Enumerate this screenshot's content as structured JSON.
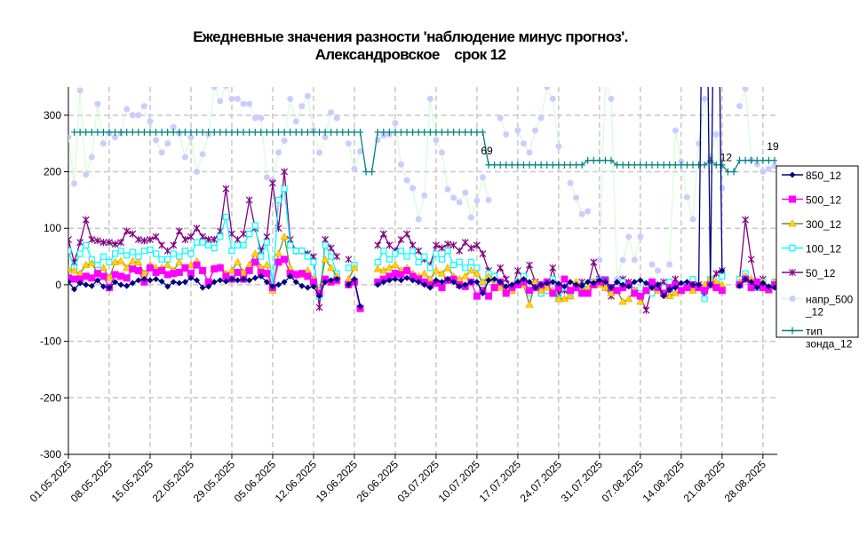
{
  "chart_data": {
    "type": "line",
    "title": [
      "Ежедневные значения разности 'наблюдение минус прогноз'.",
      "Александровское    срок 12"
    ],
    "xlabel": "",
    "ylabel": "",
    "x_start": "01.05.2025",
    "x_end": "30.08.2025",
    "x_tick_labels": [
      "01.05.2025",
      "08.05.2025",
      "15.05.2025",
      "22.05.2025",
      "29.05.2025",
      "05.06.2025",
      "12.06.2025",
      "19.06.2025",
      "26.06.2025",
      "03.07.2025",
      "10.07.2025",
      "17.07.2025",
      "24.07.2025",
      "31.07.2025",
      "07.08.2025",
      "14.08.2025",
      "21.08.2025",
      "28.08.2025"
    ],
    "ylim": [
      -300,
      350
    ],
    "y_ticks": [
      -300,
      -200,
      -100,
      0,
      100,
      200,
      300
    ],
    "grid": true,
    "legend_position": "right",
    "series": [
      {
        "name": "850_12",
        "color": "#000080",
        "marker": "diamond",
        "values": [
          5,
          -8,
          3,
          0,
          -2,
          8,
          -3,
          -5,
          5,
          0,
          -2,
          3,
          8,
          10,
          8,
          10,
          6,
          -3,
          5,
          3,
          5,
          12,
          8,
          -5,
          -3,
          5,
          8,
          6,
          10,
          8,
          10,
          8,
          12,
          15,
          5,
          -3,
          0,
          5,
          15,
          5,
          -2,
          -5,
          -3,
          -20,
          5,
          8,
          10,
          null,
          0,
          10,
          -38,
          null,
          null,
          0,
          5,
          8,
          10,
          8,
          12,
          8,
          5,
          0,
          -5,
          8,
          5,
          10,
          5,
          -3,
          0,
          5,
          5,
          -15,
          8,
          10,
          5,
          -3,
          0,
          5,
          10,
          5,
          -5,
          0,
          3,
          5,
          2,
          -3,
          5,
          0,
          -2,
          5,
          3,
          8,
          5,
          -5,
          5,
          0,
          -3,
          5,
          8,
          3,
          -5,
          0,
          -20,
          -8,
          -5,
          3,
          5,
          0,
          0,
          900,
          0,
          900,
          25,
          null,
          null,
          -2,
          10,
          5,
          -5,
          3,
          -3,
          -5
        ]
      },
      {
        "name": "500_12",
        "color": "#FF00FF",
        "marker": "square",
        "values": [
          12,
          10,
          10,
          15,
          12,
          20,
          15,
          -5,
          18,
          15,
          12,
          28,
          25,
          5,
          30,
          22,
          25,
          18,
          20,
          22,
          30,
          20,
          35,
          25,
          5,
          28,
          30,
          15,
          10,
          22,
          10,
          25,
          40,
          22,
          20,
          -5,
          40,
          45,
          20,
          18,
          20,
          15,
          5,
          -15,
          10,
          5,
          8,
          null,
          0,
          5,
          -42,
          null,
          null,
          5,
          10,
          15,
          20,
          18,
          25,
          15,
          10,
          5,
          0,
          3,
          -5,
          8,
          10,
          0,
          -3,
          5,
          -20,
          -10,
          -20,
          -5,
          5,
          -15,
          -5,
          0,
          5,
          -10,
          -5,
          0,
          5,
          -15,
          -5,
          10,
          -10,
          -5,
          -15,
          -15,
          0,
          5,
          8,
          -5,
          -10,
          -5,
          0,
          -15,
          -20,
          -10,
          5,
          -5,
          -15,
          -5,
          0,
          -10,
          -5,
          0,
          -5,
          -10,
          0,
          -5,
          -10,
          null,
          null,
          0,
          10,
          -5,
          5,
          -5,
          -8,
          0
        ]
      },
      {
        "name": "300_12",
        "color": "#6B8E23",
        "fill": "#FFD700",
        "marker": "triangle",
        "values": [
          28,
          25,
          20,
          35,
          38,
          20,
          30,
          12,
          40,
          42,
          30,
          42,
          40,
          20,
          35,
          30,
          30,
          35,
          25,
          40,
          28,
          35,
          42,
          25,
          5,
          30,
          32,
          20,
          25,
          40,
          22,
          35,
          55,
          30,
          35,
          -10,
          55,
          85,
          30,
          20,
          18,
          25,
          10,
          -10,
          45,
          30,
          15,
          null,
          10,
          30,
          null,
          null,
          null,
          28,
          25,
          30,
          35,
          25,
          30,
          20,
          15,
          20,
          10,
          25,
          20,
          30,
          15,
          10,
          15,
          25,
          20,
          5,
          15,
          0,
          -5,
          -10,
          -10,
          5,
          0,
          -35,
          5,
          -10,
          -5,
          -10,
          -25,
          -25,
          -20,
          5,
          -10,
          -5,
          5,
          0,
          -5,
          -15,
          -10,
          -30,
          -25,
          -10,
          -30,
          -10,
          -5,
          -10,
          -15,
          -20,
          -15,
          -10,
          -5,
          -10,
          -5,
          0,
          10,
          5,
          0,
          null,
          null,
          5,
          15,
          10,
          0,
          5,
          -10,
          5
        ]
      },
      {
        "name": "100_12",
        "color": "#00FFFF",
        "marker": "open-square",
        "values": [
          60,
          30,
          55,
          70,
          45,
          35,
          50,
          40,
          55,
          60,
          52,
          58,
          50,
          60,
          62,
          55,
          45,
          45,
          55,
          50,
          60,
          55,
          75,
          75,
          70,
          65,
          85,
          120,
          60,
          70,
          70,
          90,
          105,
          50,
          75,
          0,
          150,
          170,
          70,
          60,
          60,
          50,
          40,
          -20,
          70,
          50,
          20,
          null,
          30,
          35,
          null,
          null,
          null,
          40,
          60,
          45,
          55,
          60,
          50,
          60,
          40,
          50,
          30,
          55,
          45,
          60,
          35,
          40,
          30,
          40,
          30,
          -5,
          20,
          15,
          5,
          -5,
          -10,
          5,
          15,
          -15,
          0,
          -15,
          -10,
          10,
          -25,
          -5,
          -20,
          0,
          -10,
          0,
          5,
          8,
          10,
          -10,
          -5,
          5,
          0,
          -10,
          -15,
          -5,
          -15,
          -10,
          -5,
          5,
          -10,
          -5,
          0,
          10,
          -5,
          -25,
          10,
          -5,
          15,
          null,
          null,
          10,
          20,
          5,
          -5,
          5,
          -10,
          5
        ]
      },
      {
        "name": "50_12",
        "color": "#800080",
        "marker": "star",
        "values": [
          80,
          40,
          75,
          115,
          80,
          78,
          75,
          75,
          72,
          75,
          95,
          90,
          80,
          78,
          80,
          85,
          70,
          60,
          70,
          95,
          80,
          85,
          100,
          85,
          80,
          80,
          95,
          170,
          90,
          80,
          90,
          150,
          100,
          60,
          85,
          180,
          100,
          200,
          80,
          60,
          60,
          55,
          50,
          -40,
          80,
          65,
          50,
          null,
          45,
          null,
          null,
          null,
          null,
          70,
          90,
          70,
          60,
          80,
          90,
          70,
          60,
          45,
          35,
          70,
          65,
          72,
          70,
          60,
          75,
          65,
          70,
          55,
          25,
          15,
          30,
          10,
          -10,
          25,
          10,
          35,
          5,
          -15,
          -10,
          30,
          -15,
          -10,
          -20,
          -5,
          5,
          -5,
          40,
          10,
          -5,
          -20,
          0,
          10,
          5,
          -10,
          -20,
          -45,
          -5,
          0,
          5,
          -15,
          10,
          -5,
          0,
          5,
          0,
          -20,
          0,
          20,
          25,
          null,
          null,
          10,
          115,
          45,
          -5,
          10,
          -5,
          0
        ]
      },
      {
        "name": "напр_500_12",
        "color": "#CCFFCC",
        "fill": "#CCCCFF",
        "marker": "circle",
        "values": [
          261,
          179,
          344,
          195,
          226,
          320,
          250,
          268,
          261,
          268,
          311,
          300,
          300,
          316,
          289,
          256,
          234,
          250,
          279,
          268,
          226,
          261,
          200,
          231,
          266,
          350,
          325,
          352,
          329,
          329,
          320,
          320,
          295,
          295,
          190,
          185,
          234,
          255,
          329,
          289,
          316,
          334,
          273,
          234,
          261,
          305,
          295,
          null,
          250,
          205,
          236,
          null,
          null,
          256,
          264,
          266,
          286,
          213,
          185,
          171,
          116,
          158,
          329,
          256,
          234,
          169,
          154,
          146,
          163,
          119,
          149,
          190,
          150,
          null,
          295,
          266,
          null,
          273,
          250,
          234,
          273,
          295,
          350,
          329,
          245,
          null,
          180,
          154,
          125,
          130,
          null,
          44,
          360,
          329,
          10,
          44,
          85,
          44,
          85,
          null,
          36,
          25,
          null,
          36,
          273,
          218,
          155,
          116,
          250,
          329,
          226,
          266,
          171,
          null,
          null,
          316,
          347,
          221,
          213,
          200,
          205,
          210
        ]
      },
      {
        "name": "тип зонда_12",
        "color": "#008080",
        "marker": "plus",
        "values": [
          null,
          270,
          270,
          270,
          270,
          270,
          270,
          270,
          270,
          270,
          270,
          270,
          270,
          270,
          270,
          270,
          270,
          270,
          270,
          270,
          270,
          270,
          270,
          270,
          270,
          270,
          270,
          270,
          270,
          270,
          270,
          270,
          270,
          270,
          270,
          270,
          270,
          270,
          270,
          270,
          270,
          270,
          270,
          270,
          270,
          270,
          270,
          270,
          270,
          270,
          270,
          200,
          200,
          270,
          270,
          270,
          270,
          270,
          270,
          270,
          270,
          270,
          270,
          270,
          270,
          270,
          270,
          270,
          270,
          270,
          270,
          270,
          212,
          212,
          212,
          212,
          212,
          212,
          212,
          212,
          212,
          212,
          212,
          212,
          212,
          212,
          212,
          212,
          212,
          220,
          220,
          220,
          220,
          220,
          212,
          212,
          212,
          212,
          212,
          212,
          212,
          212,
          212,
          212,
          212,
          212,
          212,
          212,
          212,
          212,
          220,
          212,
          212,
          200,
          200,
          220,
          220,
          220,
          220,
          220,
          220,
          220
        ]
      }
    ],
    "annotations": [
      {
        "series": "тип зонда_12",
        "date": "12.07.2025",
        "text": "69"
      },
      {
        "series": "тип зонда_12",
        "date": "22.08.2025",
        "text": "12"
      },
      {
        "series": "тип зонда_12",
        "date": "30.08.2025",
        "text": "19"
      }
    ]
  },
  "legend": {
    "items": [
      {
        "lines": [
          "850_12"
        ]
      },
      {
        "lines": [
          "500_12"
        ]
      },
      {
        "lines": [
          "300_12"
        ]
      },
      {
        "lines": [
          "100_12"
        ]
      },
      {
        "lines": [
          "50_12"
        ]
      },
      {
        "lines": [
          "напр_500",
          "_12"
        ]
      },
      {
        "lines": [
          "тип",
          "зонда_12"
        ]
      }
    ]
  }
}
